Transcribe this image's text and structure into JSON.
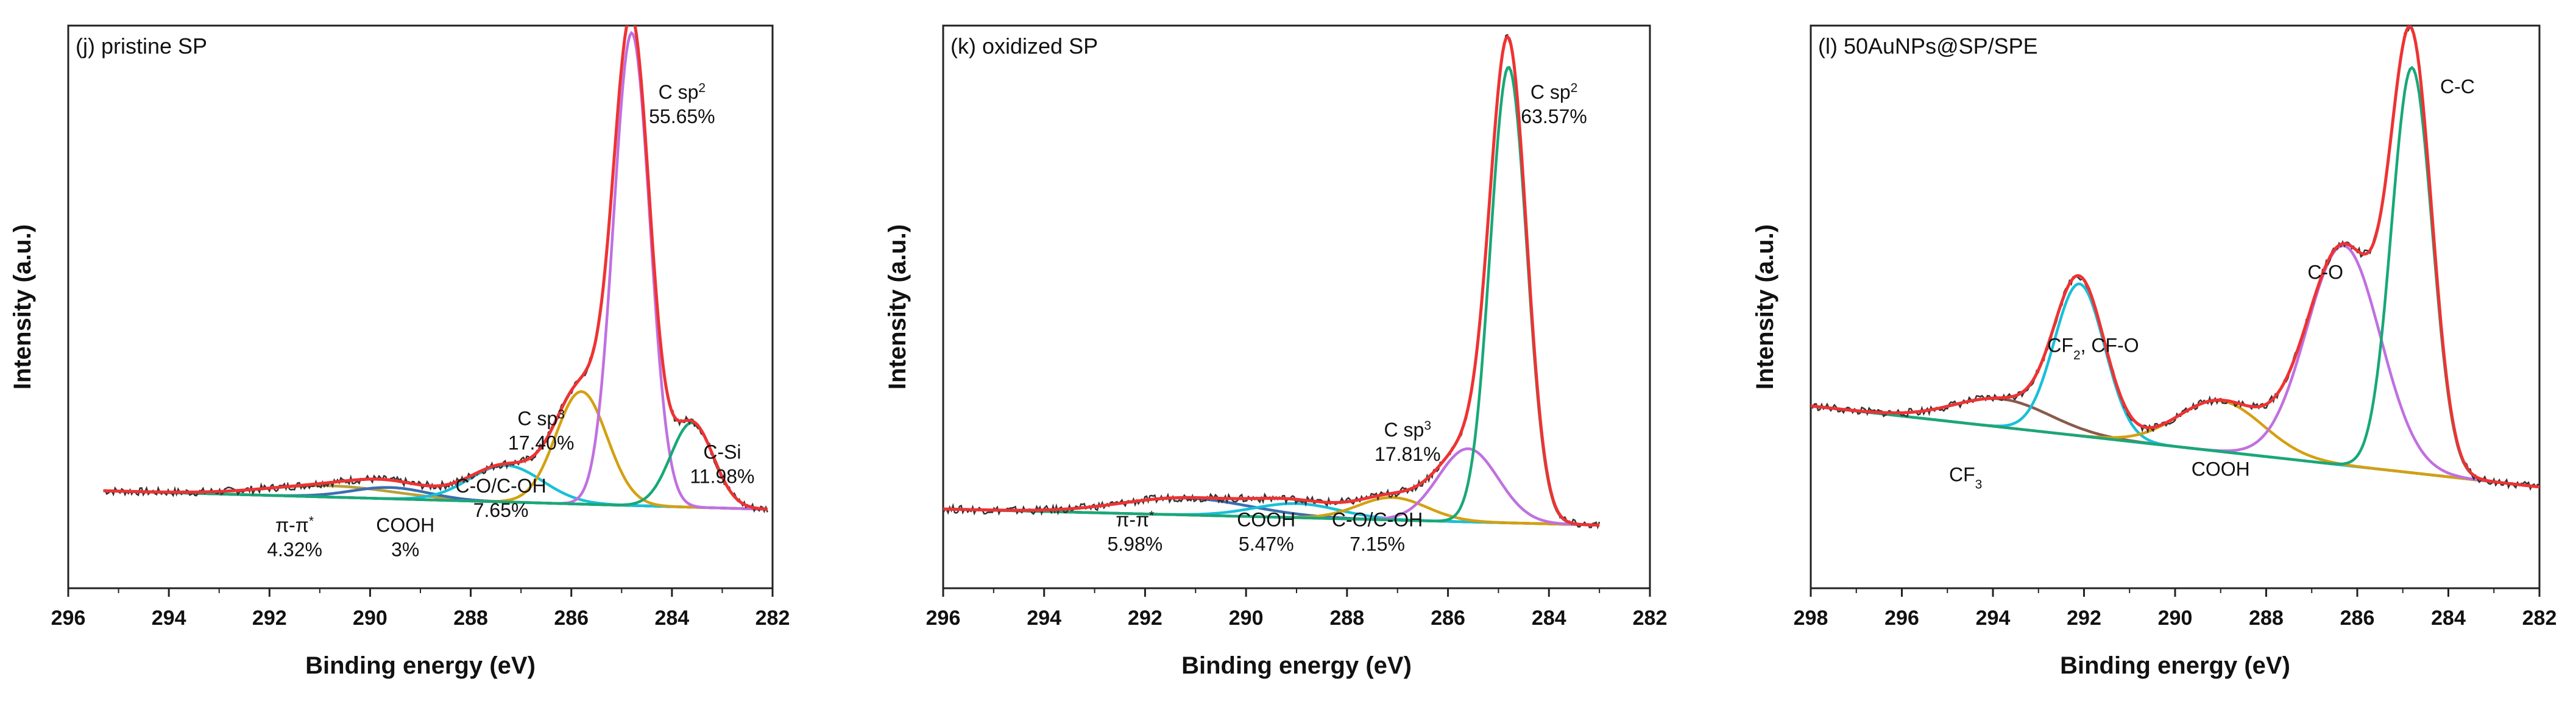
{
  "chart_data": [
    {
      "type": "line",
      "panel_label": "(j) pristine SP",
      "xlabel": "Binding energy (eV)",
      "ylabel": "Intensity (a.u.)",
      "xlim": [
        296,
        282
      ],
      "ylim": [
        0,
        1
      ],
      "xticks": [
        296,
        294,
        292,
        290,
        288,
        286,
        284,
        282
      ],
      "x_start": 295.3,
      "x_end": 282.1,
      "baseline": {
        "c0": 0.14,
        "c1": 0.0025,
        "x0": 282
      },
      "envelope_color": "#ee3333",
      "peaks": [
        {
          "name": "pi-pi*",
          "center": 290.8,
          "amplitude": 0.02,
          "fwhm": 3.0,
          "color": "#b8a13a",
          "label_lines": [
            "π-π*",
            "4.32%"
          ],
          "label_x": 291.5,
          "label_y": 0.1
        },
        {
          "name": "COOH",
          "center": 289.6,
          "amplitude": 0.02,
          "fwhm": 1.8,
          "color": "#3a6fb0",
          "label_lines": [
            "COOH",
            "3%"
          ],
          "label_x": 289.3,
          "label_y": 0.1
        },
        {
          "name": "C-O/C-OH",
          "center": 287.3,
          "amplitude": 0.065,
          "fwhm": 1.7,
          "color": "#18c0d8",
          "label_lines": [
            "C-O/C-OH",
            "7.65%"
          ],
          "label_x": 287.4,
          "label_y": 0.17
        },
        {
          "name": "C sp3",
          "center": 285.8,
          "amplitude": 0.2,
          "fwhm": 1.2,
          "color": "#d4a010",
          "label_lines": [
            "C sp3",
            "17.40%"
          ],
          "label_x": 286.6,
          "label_y": 0.29
        },
        {
          "name": "C sp2",
          "center": 284.8,
          "amplitude": 0.84,
          "fwhm": 0.85,
          "color": "#c070e0",
          "label_lines": [
            "C sp2",
            "55.65%"
          ],
          "label_x": 283.8,
          "label_y": 0.87
        },
        {
          "name": "C-Si",
          "center": 283.6,
          "amplitude": 0.15,
          "fwhm": 1.0,
          "color": "#18a878",
          "label_lines": [
            "C-Si",
            "11.98%"
          ],
          "label_x": 283.0,
          "label_y": 0.23
        }
      ]
    },
    {
      "type": "line",
      "panel_label": "(k) oxidized SP",
      "xlabel": "Binding energy (eV)",
      "ylabel": "Intensity (a.u.)",
      "xlim": [
        296,
        282
      ],
      "ylim": [
        0,
        1
      ],
      "xticks": [
        296,
        294,
        292,
        290,
        288,
        286,
        284,
        282
      ],
      "x_start": 296,
      "x_end": 283.0,
      "baseline": {
        "c0": 0.11,
        "c1": 0.0022,
        "x0": 282
      },
      "envelope_color": "#ee3333",
      "peaks": [
        {
          "name": "pi-pi*",
          "center": 291.2,
          "amplitude": 0.03,
          "fwhm": 3.0,
          "color": "#3a6fb0",
          "label_lines": [
            "π-π*",
            "5.98%"
          ],
          "label_x": 292.2,
          "label_y": 0.11
        },
        {
          "name": "COOH",
          "center": 289.0,
          "amplitude": 0.025,
          "fwhm": 2.0,
          "color": "#18c0d8",
          "label_lines": [
            "COOH",
            "5.47%"
          ],
          "label_x": 289.6,
          "label_y": 0.11
        },
        {
          "name": "C-O/C-OH",
          "center": 287.1,
          "amplitude": 0.04,
          "fwhm": 1.6,
          "color": "#d4a010",
          "label_lines": [
            "C-O/C-OH",
            "7.15%"
          ],
          "label_x": 287.4,
          "label_y": 0.11
        },
        {
          "name": "C sp3",
          "center": 285.6,
          "amplitude": 0.13,
          "fwhm": 1.4,
          "color": "#c070e0",
          "label_lines": [
            "C sp3",
            "17.81%"
          ],
          "label_x": 286.8,
          "label_y": 0.27
        },
        {
          "name": "C sp2",
          "center": 284.8,
          "amplitude": 0.81,
          "fwhm": 0.85,
          "color": "#18a878",
          "label_lines": [
            "C sp2",
            "63.57%"
          ],
          "label_x": 283.9,
          "label_y": 0.87
        }
      ]
    },
    {
      "type": "line",
      "panel_label": "(l) 50AuNPs@SP/SPE",
      "xlabel": "Binding energy (eV)",
      "ylabel": "Intensity (a.u.)",
      "xlim": [
        298,
        282
      ],
      "ylim": [
        0,
        1
      ],
      "xticks": [
        298,
        296,
        294,
        292,
        290,
        288,
        286,
        284,
        282
      ],
      "x_start": 298,
      "x_end": 282,
      "baseline": {
        "c0": 0.18,
        "c1": 0.009,
        "x0": 282
      },
      "envelope_color": "#ee3333",
      "peaks": [
        {
          "name": "CF3",
          "center": 293.8,
          "amplitude": 0.05,
          "fwhm": 2.5,
          "color": "#8a5a4a",
          "label_lines": [
            "CF3"
          ],
          "label_x": 294.6,
          "label_y": 0.19
        },
        {
          "name": "CF2, CF-O",
          "center": 292.1,
          "amplitude": 0.27,
          "fwhm": 1.3,
          "color": "#18c0d8",
          "label_lines": [
            "CF2, CF-O"
          ],
          "label_x": 291.8,
          "label_y": 0.42
        },
        {
          "name": "COOH",
          "center": 289.0,
          "amplitude": 0.09,
          "fwhm": 2.2,
          "color": "#d4a010",
          "label_lines": [
            "COOH"
          ],
          "label_x": 289.0,
          "label_y": 0.2
        },
        {
          "name": "C-O",
          "center": 286.3,
          "amplitude": 0.39,
          "fwhm": 1.9,
          "color": "#c070e0",
          "label_lines": [
            "C-O"
          ],
          "label_x": 286.7,
          "label_y": 0.55
        },
        {
          "name": "C-C",
          "center": 284.8,
          "amplitude": 0.72,
          "fwhm": 1.05,
          "color": "#18a878",
          "label_lines": [
            "C-C"
          ],
          "label_x": 283.8,
          "label_y": 0.88
        }
      ]
    }
  ]
}
